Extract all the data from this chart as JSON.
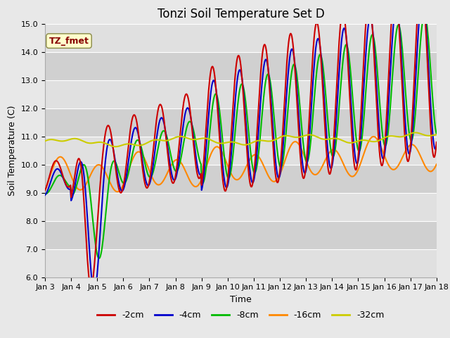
{
  "title": "Tonzi Soil Temperature Set D",
  "xlabel": "Time",
  "ylabel": "Soil Temperature (C)",
  "ylim": [
    6.0,
    15.0
  ],
  "yticks": [
    6.0,
    7.0,
    8.0,
    9.0,
    10.0,
    11.0,
    12.0,
    13.0,
    14.0,
    15.0
  ],
  "xtick_labels": [
    "Jan 3",
    "Jan 4",
    "Jan 5",
    "Jan 6",
    "Jan 7",
    "Jan 8",
    "Jan 9",
    "Jan 10",
    "Jan 11",
    "Jan 12",
    "Jan 13",
    "Jan 14",
    "Jan 15",
    "Jan 16",
    "Jan 17",
    "Jan 18"
  ],
  "legend_labels": [
    "-2cm",
    "-4cm",
    "-8cm",
    "-16cm",
    "-32cm"
  ],
  "legend_colors": [
    "#cc0000",
    "#0000cc",
    "#00bb00",
    "#ff8800",
    "#cccc00"
  ],
  "line_widths": [
    1.5,
    1.5,
    1.5,
    1.5,
    1.5
  ],
  "annotation_text": "TZ_fmet",
  "annotation_color": "#880000",
  "annotation_bg": "#ffffcc",
  "bg_color": "#e8e8e8",
  "title_fontsize": 12,
  "axis_fontsize": 8,
  "legend_fontsize": 9
}
